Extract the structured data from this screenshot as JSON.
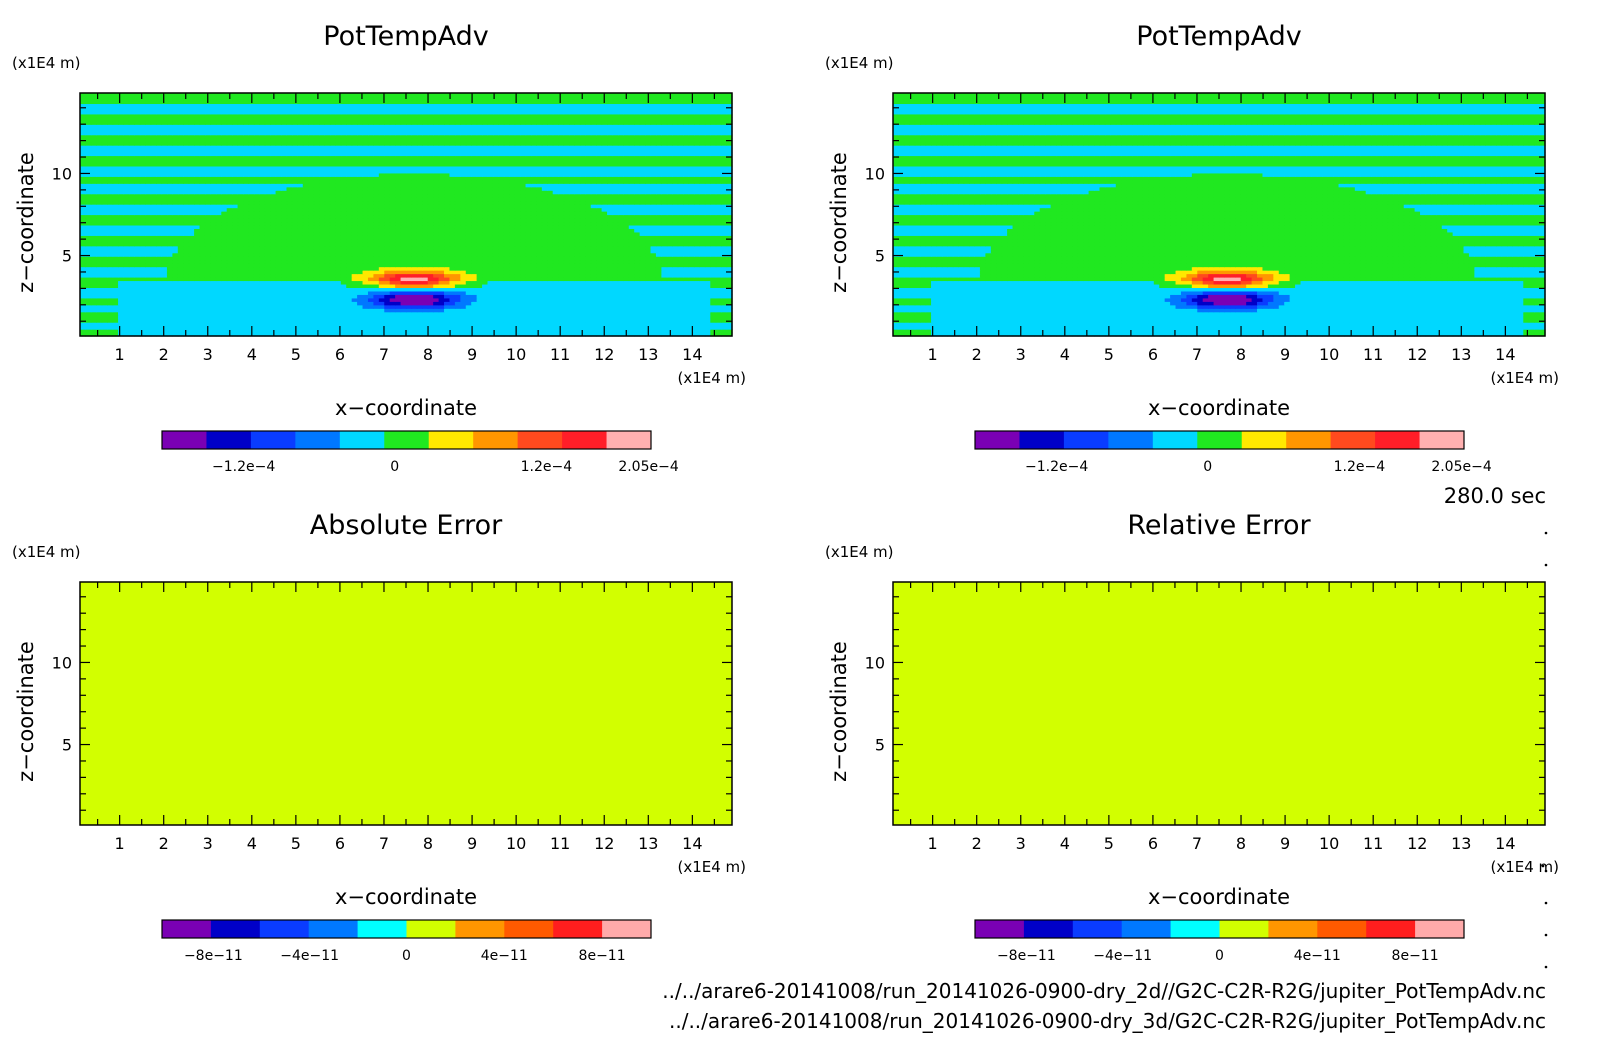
{
  "figure": {
    "time_label": "280.0 sec",
    "files": [
      "../../arare6-20141008/run_20141026-0900-dry_2d//G2C-C2R-R2G/jupiter_PotTempAdv.nc",
      "../../arare6-20141008/run_20141026-0900-dry_3d/G2C-C2R-R2G/jupiter_PotTempAdv.nc"
    ]
  },
  "chart_data": [
    {
      "type": "heatmap",
      "title": "PotTempAdv",
      "xlabel": "x−coordinate",
      "ylabel": "z−coordinate",
      "x_unit": "(x1E4 m)",
      "y_unit": "(x1E4 m)",
      "xlim": [
        0.1,
        14.9
      ],
      "ylim": [
        0.1,
        14.9
      ],
      "xticks": [
        1,
        2,
        3,
        4,
        5,
        6,
        7,
        8,
        9,
        10,
        11,
        12,
        13,
        14
      ],
      "yticks": [
        5,
        10
      ],
      "field": "anomaly",
      "colorbar": {
        "colors": [
          "#7a00b4",
          "#0000c8",
          "#0a3cff",
          "#0078ff",
          "#00d8ff",
          "#20e820",
          "#ffe800",
          "#ff9600",
          "#ff4a1e",
          "#ff1e28",
          "#ffb0b0"
        ],
        "labels": [
          "−1.2e−4",
          "0",
          "1.2e−4",
          "2.05e−4"
        ]
      }
    },
    {
      "type": "heatmap",
      "title": "PotTempAdv",
      "xlabel": "x−coordinate",
      "ylabel": "z−coordinate",
      "x_unit": "(x1E4 m)",
      "y_unit": "(x1E4 m)",
      "xlim": [
        0.1,
        14.9
      ],
      "ylim": [
        0.1,
        14.9
      ],
      "xticks": [
        1,
        2,
        3,
        4,
        5,
        6,
        7,
        8,
        9,
        10,
        11,
        12,
        13,
        14
      ],
      "yticks": [
        5,
        10
      ],
      "field": "anomaly",
      "colorbar": {
        "colors": [
          "#7a00b4",
          "#0000c8",
          "#0a3cff",
          "#0078ff",
          "#00d8ff",
          "#20e820",
          "#ffe800",
          "#ff9600",
          "#ff4a1e",
          "#ff1e28",
          "#ffb0b0"
        ],
        "labels": [
          "−1.2e−4",
          "0",
          "1.2e−4",
          "2.05e−4"
        ]
      }
    },
    {
      "type": "heatmap",
      "title": "Absolute Error",
      "xlabel": "x−coordinate",
      "ylabel": "z−coordinate",
      "x_unit": "(x1E4 m)",
      "y_unit": "(x1E4 m)",
      "xlim": [
        0.1,
        14.9
      ],
      "ylim": [
        0.1,
        14.9
      ],
      "xticks": [
        1,
        2,
        3,
        4,
        5,
        6,
        7,
        8,
        9,
        10,
        11,
        12,
        13,
        14
      ],
      "yticks": [
        5,
        10
      ],
      "field": "uniform",
      "fill_color": "#d2ff00",
      "colorbar": {
        "colors": [
          "#7a00b4",
          "#0000c8",
          "#0a3cff",
          "#0078ff",
          "#00ffff",
          "#d2ff00",
          "#ff9600",
          "#ff5a00",
          "#ff1e1e",
          "#ffaaaa"
        ],
        "labels": [
          "−8e−11",
          "−4e−11",
          "0",
          "4e−11",
          "8e−11"
        ]
      }
    },
    {
      "type": "heatmap",
      "title": "Relative Error",
      "xlabel": "x−coordinate",
      "ylabel": "z−coordinate",
      "x_unit": "(x1E4 m)",
      "y_unit": "(x1E4 m)",
      "xlim": [
        0.1,
        14.9
      ],
      "ylim": [
        0.1,
        14.9
      ],
      "xticks": [
        1,
        2,
        3,
        4,
        5,
        6,
        7,
        8,
        9,
        10,
        11,
        12,
        13,
        14
      ],
      "yticks": [
        5,
        10
      ],
      "field": "uniform",
      "fill_color": "#d2ff00",
      "colorbar": {
        "colors": [
          "#7a00b4",
          "#0000c8",
          "#0a3cff",
          "#0078ff",
          "#00ffff",
          "#d2ff00",
          "#ff9600",
          "#ff5a00",
          "#ff1e1e",
          "#ffaaaa"
        ],
        "labels": [
          "−8e−11",
          "−4e−11",
          "0",
          "4e−11",
          "8e−11"
        ]
      }
    }
  ]
}
